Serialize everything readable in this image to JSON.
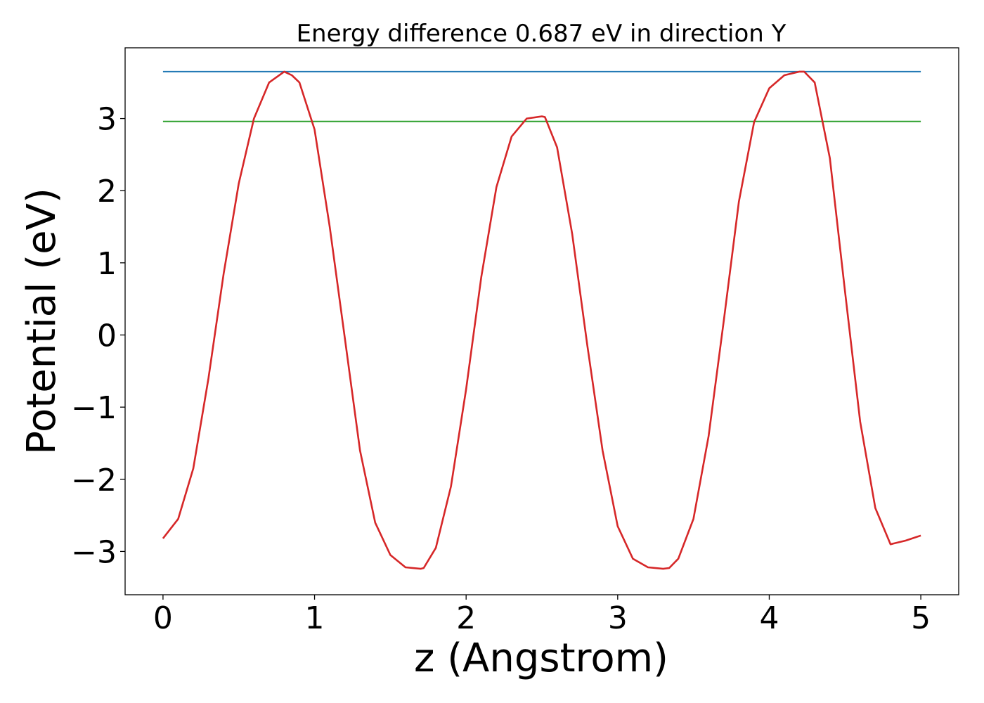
{
  "chart_data": {
    "type": "line",
    "title": "Energy difference 0.687 eV in direction Y",
    "xlabel": "z (Angstrom)",
    "ylabel": "Potential (eV)",
    "xlim": [
      -0.25,
      5.25
    ],
    "ylim": [
      -3.6,
      3.98
    ],
    "grid": false,
    "xticks": [
      0,
      1,
      2,
      3,
      4,
      5
    ],
    "xtick_labels": [
      "0",
      "1",
      "2",
      "3",
      "4",
      "5"
    ],
    "yticks": [
      -3,
      -2,
      -1,
      0,
      1,
      2,
      3
    ],
    "ytick_labels": [
      "−3",
      "−2",
      "−1",
      "0",
      "1",
      "2",
      "3"
    ],
    "series": [
      {
        "color": "#1f77b4",
        "x": [
          0,
          5
        ],
        "y": [
          3.65,
          3.65
        ]
      },
      {
        "color": "#2ca02c",
        "x": [
          0,
          5
        ],
        "y": [
          2.96,
          2.96
        ]
      },
      {
        "color": "#d62728",
        "x": [
          0,
          0.1,
          0.2,
          0.3,
          0.4,
          0.5,
          0.6,
          0.7,
          0.8,
          0.85,
          0.9,
          1.0,
          1.1,
          1.2,
          1.3,
          1.4,
          1.5,
          1.6,
          1.7,
          1.72,
          1.8,
          1.9,
          2.0,
          2.1,
          2.2,
          2.3,
          2.4,
          2.5,
          2.52,
          2.6,
          2.7,
          2.8,
          2.9,
          3.0,
          3.1,
          3.2,
          3.3,
          3.34,
          3.4,
          3.5,
          3.6,
          3.7,
          3.8,
          3.9,
          4.0,
          4.1,
          4.2,
          4.23,
          4.3,
          4.4,
          4.5,
          4.6,
          4.7,
          4.8,
          4.9,
          5.0
        ],
        "y": [
          -2.82,
          -2.55,
          -1.85,
          -0.6,
          0.85,
          2.1,
          3.0,
          3.5,
          3.65,
          3.6,
          3.5,
          2.85,
          1.5,
          -0.05,
          -1.6,
          -2.6,
          -3.05,
          -3.22,
          -3.24,
          -3.23,
          -2.95,
          -2.1,
          -0.75,
          0.8,
          2.05,
          2.75,
          3.0,
          3.03,
          3.02,
          2.6,
          1.4,
          -0.15,
          -1.6,
          -2.65,
          -3.1,
          -3.22,
          -3.24,
          -3.23,
          -3.1,
          -2.55,
          -1.4,
          0.2,
          1.85,
          2.95,
          3.42,
          3.6,
          3.65,
          3.65,
          3.5,
          2.45,
          0.6,
          -1.2,
          -2.4,
          -2.9,
          -2.85,
          -2.78
        ]
      }
    ]
  }
}
